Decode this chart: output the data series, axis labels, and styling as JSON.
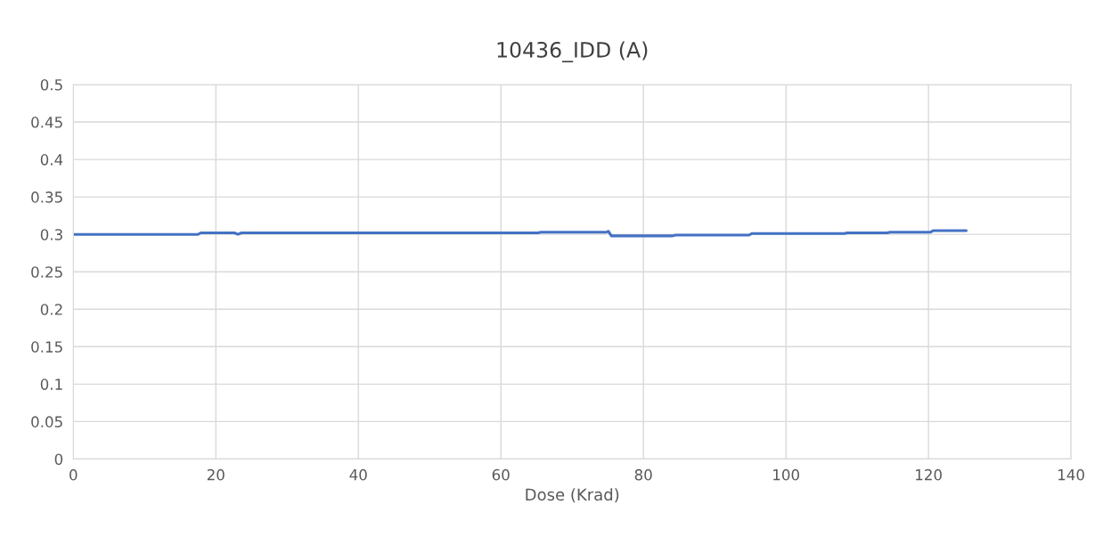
{
  "chart_data": {
    "type": "line",
    "title": "10436_IDD (A)",
    "xlabel": "Dose (Krad)",
    "x": [
      0,
      17.5,
      17.9,
      22.6,
      23.1,
      23.6,
      65.2,
      65.6,
      74.8,
      75.1,
      75.5,
      84.1,
      84.5,
      94.8,
      95.2,
      108.2,
      108.6,
      114.2,
      114.6,
      120.3,
      120.7,
      125.3
    ],
    "series": [
      {
        "color": "#4472c4",
        "values": [
          0.3,
          0.3,
          0.302,
          0.302,
          0.3,
          0.302,
          0.302,
          0.303,
          0.303,
          0.304,
          0.298,
          0.298,
          0.299,
          0.299,
          0.301,
          0.301,
          0.302,
          0.302,
          0.303,
          0.303,
          0.305,
          0.305
        ]
      }
    ],
    "xlim": [
      0,
      140
    ],
    "xticks": [
      0,
      20,
      40,
      60,
      80,
      100,
      120,
      140
    ],
    "ylim": [
      0,
      0.5
    ],
    "yticks": [
      0,
      0.05,
      0.1,
      0.15,
      0.2,
      0.25,
      0.3,
      0.35,
      0.4,
      0.45,
      0.5
    ],
    "grid": true,
    "legend": false,
    "marker": "none",
    "line_style": "solid"
  }
}
